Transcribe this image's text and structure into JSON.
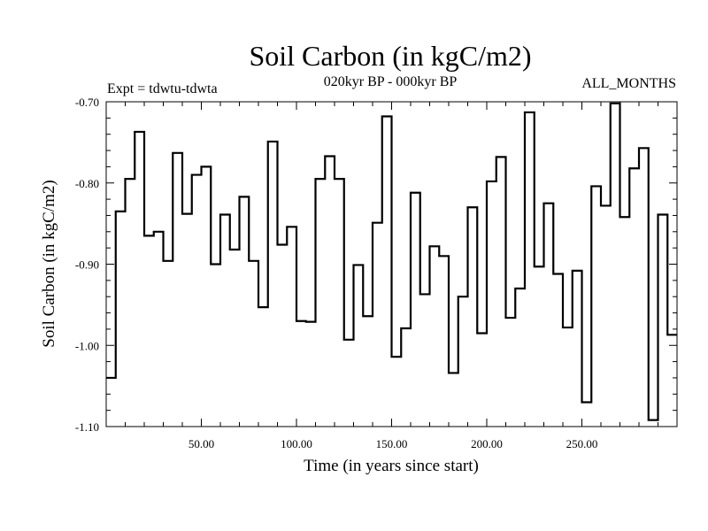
{
  "chart_data": {
    "type": "line",
    "style": "step",
    "title": "Soil Carbon (in kgC/m2)",
    "subtitle": "020kyr BP - 000kyr BP",
    "left_label": "Expt = tdwtu-tdwta",
    "right_label": "ALL_MONTHS",
    "xlabel": "Time (in years since start)",
    "ylabel": "Soil Carbon (in kgC/m2)",
    "xlim": [
      0,
      300
    ],
    "ylim": [
      -1.1,
      -0.7
    ],
    "x_ticks": [
      50,
      100,
      150,
      200,
      250
    ],
    "x_tick_labels": [
      "50.00",
      "100.00",
      "150.00",
      "200.00",
      "250.00"
    ],
    "y_ticks": [
      -0.7,
      -0.8,
      -0.9,
      -1.0,
      -1.1
    ],
    "y_tick_labels": [
      "-0.70",
      "-0.80",
      "-0.90",
      "-1.00",
      "-1.10"
    ],
    "series": [
      {
        "name": "Soil Carbon",
        "x_start": 0,
        "step": 5,
        "values": [
          -1.04,
          -0.835,
          -0.795,
          -0.737,
          -0.865,
          -0.86,
          -0.896,
          -0.763,
          -0.838,
          -0.79,
          -0.78,
          -0.9,
          -0.839,
          -0.882,
          -0.817,
          -0.896,
          -0.953,
          -0.749,
          -0.876,
          -0.854,
          -0.97,
          -0.971,
          -0.795,
          -0.767,
          -0.795,
          -0.993,
          -0.901,
          -0.964,
          -0.849,
          -0.718,
          -1.014,
          -0.979,
          -0.812,
          -0.937,
          -0.878,
          -0.89,
          -1.034,
          -0.94,
          -0.83,
          -0.985,
          -0.798,
          -0.768,
          -0.966,
          -0.93,
          -0.713,
          -0.903,
          -0.825,
          -0.912,
          -0.978,
          -0.908,
          -1.07,
          -0.804,
          -0.828,
          -0.702,
          -0.842,
          -0.782,
          -0.757,
          -1.092,
          -0.839,
          -0.987
        ]
      }
    ]
  }
}
